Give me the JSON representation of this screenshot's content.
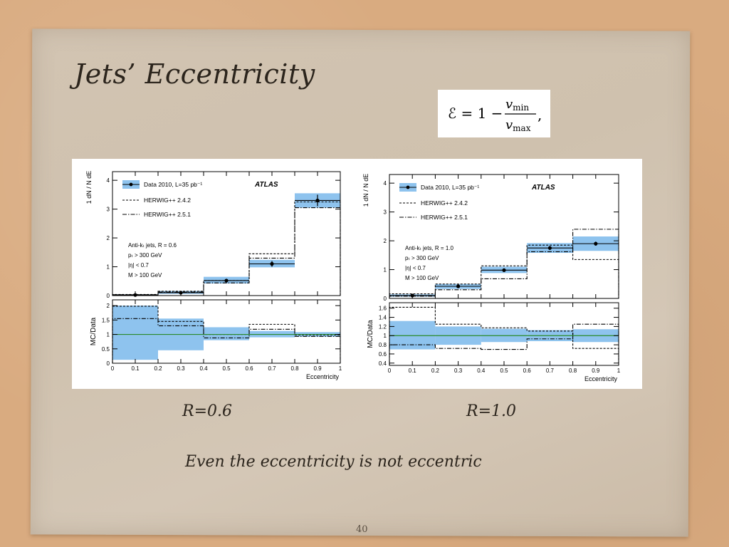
{
  "slide": {
    "title": "Jets’ Eccentricity",
    "formula": {
      "lhs": "ℰ = 1 −",
      "num": "v",
      "num_sub": "min",
      "den": "v",
      "den_sub": "max",
      "tail": ","
    },
    "captions": [
      "R=0.6",
      "R=1.0"
    ],
    "subtitle": "Even the eccentricity is not eccentric",
    "page_number": "40"
  },
  "colors": {
    "band": "#8ec3ee",
    "band_edge": "#5aa2df",
    "unity_line": "#2a8a2a"
  },
  "chart_data": [
    {
      "type": "bar",
      "panel": "left",
      "atlas_label": "ATLAS",
      "legend": [
        "Data 2010, L=35 pb⁻¹",
        "HERWIG++ 2.4.2",
        "HERWIG++ 2.5.1"
      ],
      "annotations": [
        "Anti-kₜ jets, R = 0.6",
        "pₜ > 300 GeV",
        "|η| < 0.7",
        "M > 100 GeV"
      ],
      "xlabel": "Eccentricity",
      "ylabel_top": "1 dN / N dE",
      "ylabel_bottom": "MC/Data",
      "bin_edges": [
        0,
        0.2,
        0.4,
        0.6,
        0.8,
        1.0
      ],
      "x_ticks": [
        "0",
        "0.1",
        "0.2",
        "0.3",
        "0.4",
        "0.5",
        "0.6",
        "0.7",
        "0.8",
        "0.9",
        "1"
      ],
      "main": {
        "ylim": [
          0,
          4.3
        ],
        "y_ticks": [
          "0",
          "1",
          "2",
          "3",
          "4"
        ],
        "data": {
          "x": [
            0.1,
            0.3,
            0.5,
            0.7,
            0.9
          ],
          "y": [
            0.02,
            0.1,
            0.52,
            1.1,
            3.3
          ],
          "err": [
            0.01,
            0.03,
            0.06,
            0.1,
            0.2
          ]
        },
        "band": [
          {
            "lo": 0.0,
            "hi": 0.04
          },
          {
            "lo": 0.06,
            "hi": 0.16
          },
          {
            "lo": 0.42,
            "hi": 0.65
          },
          {
            "lo": 0.98,
            "hi": 1.24
          },
          {
            "lo": 3.05,
            "hi": 3.55
          }
        ],
        "series": [
          {
            "name": "HERWIG++ 2.4.2",
            "values": [
              0.04,
              0.15,
              0.52,
              1.45,
              3.25
            ]
          },
          {
            "name": "HERWIG++ 2.5.1",
            "values": [
              0.03,
              0.12,
              0.44,
              1.3,
              3.05
            ]
          }
        ]
      },
      "ratio": {
        "ylim": [
          0,
          2.2
        ],
        "y_ticks": [
          "0",
          "0.5",
          "1",
          "1.5",
          "2"
        ],
        "band": [
          {
            "lo": 0.12,
            "hi": 2.0
          },
          {
            "lo": 0.45,
            "hi": 1.55
          },
          {
            "lo": 0.8,
            "hi": 1.25
          },
          {
            "lo": 0.9,
            "hi": 1.12
          },
          {
            "lo": 0.92,
            "hi": 1.08
          }
        ],
        "series": [
          {
            "name": "HERWIG++ 2.4.2",
            "values": [
              1.98,
              1.45,
              1.0,
              1.35,
              0.98
            ]
          },
          {
            "name": "HERWIG++ 2.5.1",
            "values": [
              1.55,
              1.3,
              0.88,
              1.18,
              0.93
            ]
          }
        ]
      }
    },
    {
      "type": "bar",
      "panel": "right",
      "atlas_label": "ATLAS",
      "legend": [
        "Data 2010, L=35 pb⁻¹",
        "HERWIG++ 2.4.2",
        "HERWIG++ 2.5.1"
      ],
      "annotations": [
        "Anti-kₜ jets, R = 1.0",
        "pₜ > 300 GeV",
        "|η| < 0.7",
        "M > 100 GeV"
      ],
      "xlabel": "Eccentricity",
      "ylabel_top": "1 dN / N dE",
      "ylabel_bottom": "MC/Data",
      "bin_edges": [
        0,
        0.2,
        0.4,
        0.6,
        0.8,
        1.0
      ],
      "x_ticks": [
        "0",
        "0.1",
        "0.2",
        "0.3",
        "0.4",
        "0.5",
        "0.6",
        "0.7",
        "0.8",
        "0.9",
        "1"
      ],
      "main": {
        "ylim": [
          0,
          4.3
        ],
        "y_ticks": [
          "0",
          "1",
          "2",
          "3",
          "4"
        ],
        "data": {
          "x": [
            0.1,
            0.3,
            0.5,
            0.7,
            0.9
          ],
          "y": [
            0.1,
            0.42,
            0.98,
            1.75,
            1.9
          ],
          "err": [
            0.02,
            0.04,
            0.06,
            0.07,
            0.07
          ]
        },
        "band": [
          {
            "lo": 0.06,
            "hi": 0.14
          },
          {
            "lo": 0.33,
            "hi": 0.5
          },
          {
            "lo": 0.88,
            "hi": 1.1
          },
          {
            "lo": 1.58,
            "hi": 1.92
          },
          {
            "lo": 1.65,
            "hi": 2.15
          }
        ],
        "series": [
          {
            "name": "HERWIG++ 2.4.2",
            "values": [
              0.16,
              0.5,
              1.13,
              1.85,
              1.35
            ]
          },
          {
            "name": "HERWIG++ 2.5.1",
            "values": [
              0.08,
              0.3,
              0.68,
              1.62,
              2.4
            ]
          }
        ]
      },
      "ratio": {
        "ylim": [
          0.35,
          1.72
        ],
        "y_ticks": [
          "0.4",
          "0.6",
          "0.8",
          "1",
          "1.2",
          "1.4",
          "1.6"
        ],
        "band": [
          {
            "lo": 0.7,
            "hi": 1.32
          },
          {
            "lo": 0.8,
            "hi": 1.2
          },
          {
            "lo": 0.86,
            "hi": 1.15
          },
          {
            "lo": 0.88,
            "hi": 1.12
          },
          {
            "lo": 0.86,
            "hi": 1.14
          }
        ],
        "series": [
          {
            "name": "HERWIG++ 2.4.2",
            "values": [
              1.62,
              1.25,
              1.17,
              1.1,
              0.72
            ]
          },
          {
            "name": "HERWIG++ 2.5.1",
            "values": [
              0.8,
              0.72,
              0.7,
              0.93,
              1.25
            ]
          }
        ]
      }
    }
  ]
}
